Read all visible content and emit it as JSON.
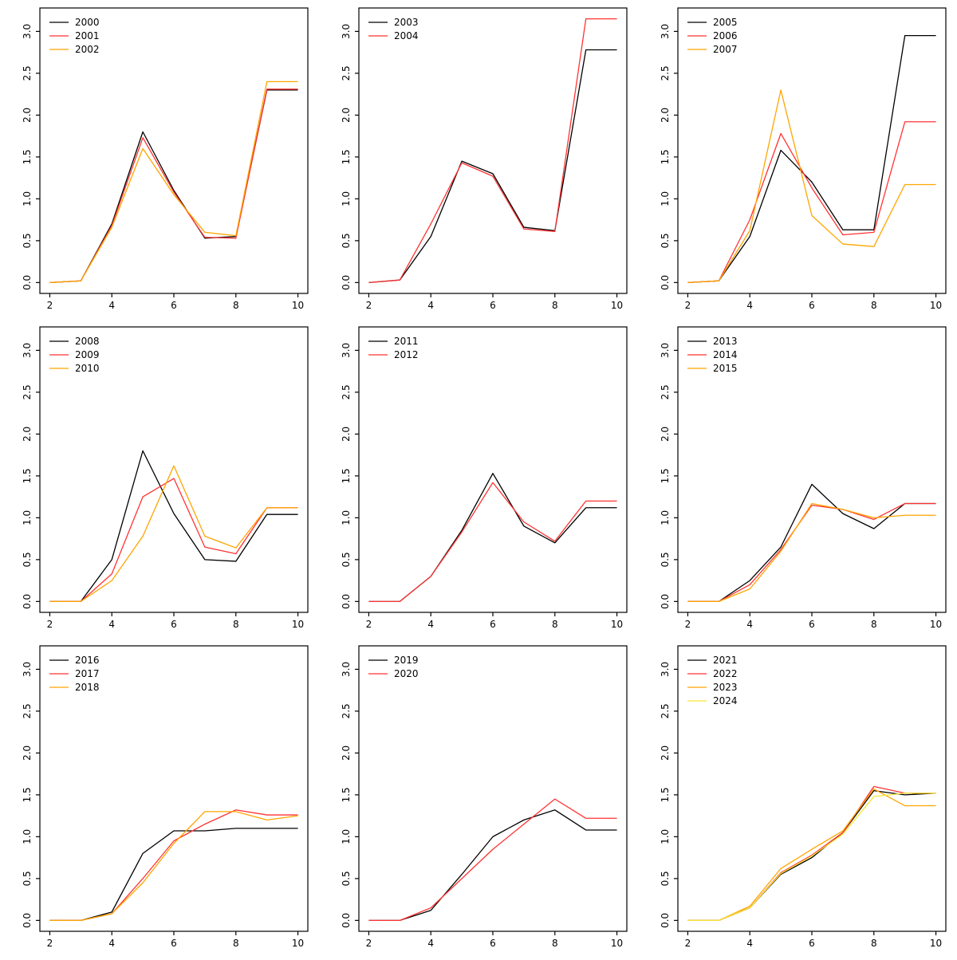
{
  "figure": {
    "background": "#ffffff",
    "rows": 3,
    "cols": 3
  },
  "chart_config": {
    "type": "line",
    "x_values": [
      2,
      3,
      4,
      5,
      6,
      7,
      8,
      9,
      10
    ],
    "x_ticks": [
      2,
      4,
      6,
      8,
      10
    ],
    "x_tick_labels": [
      "2",
      "4",
      "6",
      "8",
      "10"
    ],
    "y_ticks": [
      0.0,
      0.5,
      1.0,
      1.5,
      2.0,
      2.5,
      3.0
    ],
    "y_tick_labels": [
      "0.0",
      "0.5",
      "1.0",
      "1.5",
      "2.0",
      "2.5",
      "3.0"
    ],
    "xlim": [
      1.68,
      10.32
    ],
    "ylim": [
      -0.13,
      3.28
    ],
    "grid": "off",
    "legend_position": "top-left",
    "axis_color": "#000000"
  },
  "chart_data": [
    {
      "type": "line",
      "series": [
        {
          "name": "2000",
          "color": "#000000",
          "values": [
            0.0,
            0.02,
            0.7,
            1.8,
            1.1,
            0.53,
            0.55,
            2.3,
            2.3
          ]
        },
        {
          "name": "2001",
          "color": "#ff3333",
          "values": [
            0.0,
            0.02,
            0.68,
            1.73,
            1.08,
            0.54,
            0.53,
            2.31,
            2.31
          ]
        },
        {
          "name": "2002",
          "color": "#ffa500",
          "values": [
            0.0,
            0.02,
            0.66,
            1.6,
            1.05,
            0.6,
            0.56,
            2.4,
            2.4
          ]
        }
      ]
    },
    {
      "type": "line",
      "series": [
        {
          "name": "2003",
          "color": "#000000",
          "values": [
            0.0,
            0.03,
            0.55,
            1.45,
            1.3,
            0.66,
            0.62,
            2.78,
            2.78
          ]
        },
        {
          "name": "2004",
          "color": "#ff3333",
          "values": [
            0.0,
            0.03,
            0.7,
            1.43,
            1.27,
            0.64,
            0.61,
            3.15,
            3.15
          ]
        }
      ]
    },
    {
      "type": "line",
      "series": [
        {
          "name": "2005",
          "color": "#000000",
          "values": [
            0.0,
            0.02,
            0.55,
            1.58,
            1.2,
            0.63,
            0.63,
            2.95,
            2.95
          ]
        },
        {
          "name": "2006",
          "color": "#ff3333",
          "values": [
            0.0,
            0.02,
            0.75,
            1.78,
            1.13,
            0.57,
            0.6,
            1.92,
            1.92
          ]
        },
        {
          "name": "2007",
          "color": "#ffa500",
          "values": [
            0.0,
            0.02,
            0.62,
            2.3,
            0.8,
            0.46,
            0.43,
            1.17,
            1.17
          ]
        }
      ]
    },
    {
      "type": "line",
      "series": [
        {
          "name": "2008",
          "color": "#000000",
          "values": [
            0.0,
            0.0,
            0.5,
            1.8,
            1.05,
            0.5,
            0.48,
            1.04,
            1.04
          ]
        },
        {
          "name": "2009",
          "color": "#ff3333",
          "values": [
            0.0,
            0.0,
            0.33,
            1.25,
            1.47,
            0.65,
            0.57,
            1.12,
            1.12
          ]
        },
        {
          "name": "2010",
          "color": "#ffa500",
          "values": [
            0.0,
            0.0,
            0.25,
            0.78,
            1.62,
            0.78,
            0.64,
            1.12,
            1.12
          ]
        }
      ]
    },
    {
      "type": "line",
      "series": [
        {
          "name": "2011",
          "color": "#000000",
          "values": [
            0.0,
            0.0,
            0.3,
            0.85,
            1.53,
            0.9,
            0.7,
            1.12,
            1.12
          ]
        },
        {
          "name": "2012",
          "color": "#ff3333",
          "values": [
            0.0,
            0.0,
            0.3,
            0.83,
            1.42,
            0.95,
            0.72,
            1.2,
            1.2
          ]
        }
      ]
    },
    {
      "type": "line",
      "series": [
        {
          "name": "2013",
          "color": "#000000",
          "values": [
            0.0,
            0.0,
            0.25,
            0.65,
            1.4,
            1.05,
            0.87,
            1.17,
            1.17
          ]
        },
        {
          "name": "2014",
          "color": "#ff3333",
          "values": [
            0.0,
            0.0,
            0.2,
            0.62,
            1.15,
            1.1,
            0.98,
            1.17,
            1.17
          ]
        },
        {
          "name": "2015",
          "color": "#ffa500",
          "values": [
            0.0,
            0.0,
            0.15,
            0.6,
            1.17,
            1.1,
            1.0,
            1.03,
            1.03
          ]
        }
      ]
    },
    {
      "type": "line",
      "series": [
        {
          "name": "2016",
          "color": "#000000",
          "values": [
            0.0,
            0.0,
            0.1,
            0.8,
            1.07,
            1.07,
            1.1,
            1.1,
            1.1
          ]
        },
        {
          "name": "2017",
          "color": "#ff3333",
          "values": [
            0.0,
            0.0,
            0.08,
            0.5,
            0.95,
            1.15,
            1.32,
            1.26,
            1.26
          ]
        },
        {
          "name": "2018",
          "color": "#ffa500",
          "values": [
            0.0,
            0.0,
            0.08,
            0.45,
            0.92,
            1.3,
            1.3,
            1.2,
            1.25
          ]
        }
      ]
    },
    {
      "type": "line",
      "series": [
        {
          "name": "2019",
          "color": "#000000",
          "values": [
            0.0,
            0.0,
            0.12,
            0.55,
            1.0,
            1.2,
            1.32,
            1.08,
            1.08
          ]
        },
        {
          "name": "2020",
          "color": "#ff3333",
          "values": [
            0.0,
            0.0,
            0.15,
            0.5,
            0.85,
            1.15,
            1.45,
            1.22,
            1.22
          ]
        }
      ]
    },
    {
      "type": "line",
      "series": [
        {
          "name": "2021",
          "color": "#000000",
          "values": [
            0.0,
            0.0,
            0.15,
            0.55,
            0.75,
            1.05,
            1.55,
            1.5,
            1.52
          ]
        },
        {
          "name": "2022",
          "color": "#ff3333",
          "values": [
            0.0,
            0.0,
            0.15,
            0.57,
            0.78,
            1.05,
            1.6,
            1.52,
            1.52
          ]
        },
        {
          "name": "2023",
          "color": "#ffa500",
          "values": [
            0.0,
            0.0,
            0.17,
            0.62,
            0.85,
            1.07,
            1.57,
            1.37,
            1.37
          ]
        },
        {
          "name": "2024",
          "color": "#f5e636",
          "values": [
            0.0,
            0.0,
            0.15,
            0.56,
            0.77,
            1.03,
            1.48,
            1.52,
            1.52
          ]
        }
      ]
    }
  ]
}
